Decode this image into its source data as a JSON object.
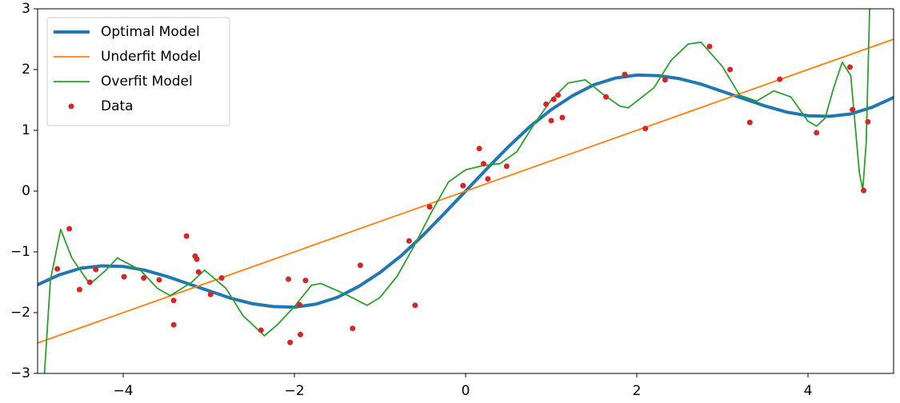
{
  "chart_data": {
    "type": "line",
    "xlim": [
      -5,
      5
    ],
    "ylim": [
      -3,
      3
    ],
    "xticks": [
      {
        "value": -4,
        "label": "−4"
      },
      {
        "value": -2,
        "label": "−2"
      },
      0,
      2,
      4
    ],
    "yticks": [
      {
        "value": -3,
        "label": "−3"
      },
      {
        "value": -2,
        "label": "−2"
      },
      {
        "value": -1,
        "label": "−1"
      },
      0,
      1,
      2,
      3
    ],
    "grid": false,
    "legend": "upper left",
    "series": [
      {
        "name": "Optimal Model",
        "color": "#1f77b4",
        "linewidth": 4,
        "x": [
          -5,
          -4.75,
          -4.5,
          -4.25,
          -4,
          -3.75,
          -3.5,
          -3.25,
          -3,
          -2.75,
          -2.5,
          -2.25,
          -2,
          -1.75,
          -1.5,
          -1.25,
          -1,
          -0.75,
          -0.5,
          -0.25,
          0,
          0.25,
          0.5,
          0.75,
          1,
          1.25,
          1.5,
          1.75,
          2,
          2.25,
          2.5,
          2.75,
          3,
          3.25,
          3.5,
          3.75,
          4,
          4.25,
          4.5,
          4.75,
          5
        ],
        "values": [
          -1.54,
          -1.38,
          -1.27,
          -1.23,
          -1.24,
          -1.3,
          -1.4,
          -1.52,
          -1.64,
          -1.76,
          -1.85,
          -1.9,
          -1.91,
          -1.86,
          -1.75,
          -1.57,
          -1.34,
          -1.06,
          -0.73,
          -0.37,
          0,
          0.37,
          0.73,
          1.06,
          1.34,
          1.57,
          1.75,
          1.86,
          1.91,
          1.9,
          1.85,
          1.76,
          1.64,
          1.52,
          1.4,
          1.3,
          1.24,
          1.23,
          1.27,
          1.38,
          1.54
        ]
      },
      {
        "name": "Underfit Model",
        "color": "#ff7f0e",
        "linewidth": 1.8,
        "x": [
          -5,
          5
        ],
        "values": [
          -2.5,
          2.5
        ]
      },
      {
        "name": "Overfit Model",
        "color": "#2ca02c",
        "linewidth": 1.8,
        "x": [
          -4.92,
          -4.85,
          -4.73,
          -4.6,
          -4.39,
          -4.2,
          -4.07,
          -3.8,
          -3.6,
          -3.45,
          -3.2,
          -3.05,
          -2.8,
          -2.6,
          -2.35,
          -2.2,
          -2.0,
          -1.8,
          -1.69,
          -1.4,
          -1.15,
          -1.0,
          -0.8,
          -0.6,
          -0.4,
          -0.2,
          0,
          0.2,
          0.4,
          0.6,
          0.8,
          1.0,
          1.2,
          1.4,
          1.6,
          1.8,
          1.9,
          2.2,
          2.4,
          2.6,
          2.75,
          3.0,
          3.2,
          3.4,
          3.6,
          3.8,
          4.0,
          4.1,
          4.2,
          4.3,
          4.4,
          4.5,
          4.6,
          4.64,
          4.68,
          4.72
        ],
        "values": [
          -3,
          -1.46,
          -0.63,
          -1.1,
          -1.53,
          -1.3,
          -1.1,
          -1.3,
          -1.6,
          -1.72,
          -1.5,
          -1.3,
          -1.6,
          -2.05,
          -2.38,
          -2.2,
          -1.9,
          -1.55,
          -1.52,
          -1.7,
          -1.88,
          -1.75,
          -1.4,
          -0.9,
          -0.35,
          0.15,
          0.35,
          0.42,
          0.45,
          0.65,
          1.1,
          1.5,
          1.78,
          1.83,
          1.6,
          1.4,
          1.37,
          1.7,
          2.15,
          2.42,
          2.45,
          2.05,
          1.58,
          1.48,
          1.65,
          1.55,
          1.15,
          1.07,
          1.2,
          1.7,
          2.12,
          1.9,
          0.3,
          0.02,
          0.8,
          3.0
        ]
      },
      {
        "name": "Data",
        "color": "#d62728",
        "marker": "o",
        "x": [
          -4.77,
          -4.63,
          -4.51,
          -4.39,
          -4.32,
          -3.99,
          -3.76,
          -3.58,
          -3.41,
          -3.41,
          -3.26,
          -3.16,
          -3.14,
          -3.12,
          -2.98,
          -2.85,
          -2.39,
          -2.07,
          -2.05,
          -1.94,
          -1.93,
          -1.87,
          -1.32,
          -1.23,
          -0.66,
          -0.59,
          -0.42,
          -0.03,
          0.16,
          0.21,
          0.26,
          0.48,
          0.94,
          1.0,
          1.03,
          1.08,
          1.13,
          1.64,
          1.86,
          2.1,
          2.33,
          2.85,
          3.09,
          3.32,
          3.67,
          4.1,
          4.49,
          4.52,
          4.65,
          4.7
        ],
        "values": [
          -1.28,
          -0.62,
          -1.62,
          -1.5,
          -1.29,
          -1.41,
          -1.43,
          -1.46,
          -1.8,
          -2.2,
          -0.74,
          -1.07,
          -1.12,
          -1.33,
          -1.7,
          -1.43,
          -2.29,
          -1.45,
          -2.49,
          -1.87,
          -2.36,
          -1.47,
          -2.26,
          -1.22,
          -0.82,
          -1.88,
          -0.26,
          0.09,
          0.7,
          0.45,
          0.2,
          0.41,
          1.43,
          1.16,
          1.51,
          1.58,
          1.21,
          1.55,
          1.92,
          1.03,
          1.83,
          2.38,
          2.0,
          1.13,
          1.84,
          0.96,
          2.04,
          1.34,
          0.01,
          1.14
        ]
      }
    ]
  }
}
